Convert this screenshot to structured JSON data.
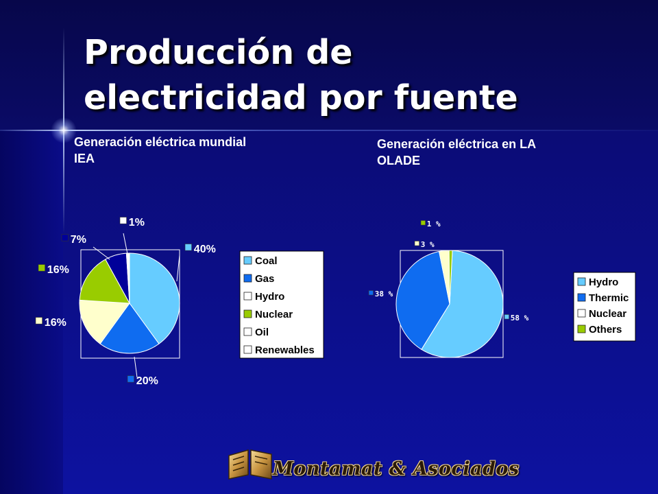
{
  "slide": {
    "title_lines": [
      "Producción de",
      "electricidad por fuente"
    ],
    "logo_text": "Montamat & Asociados"
  },
  "colors": {
    "light_blue": "#66ccff",
    "blue": "#0f6cf0",
    "cream": "#ffffcc",
    "green": "#99cc00",
    "white": "#ffffff",
    "dark_blue": "#0a0aa8",
    "gray": "#d4d4d4",
    "dark_navy": "#000099"
  },
  "chart_data": [
    {
      "type": "pie",
      "title": "Generación eléctrica mundial IEA",
      "title_lines": [
        "Generación eléctrica mundial",
        "IEA"
      ],
      "slices": [
        {
          "label": "Coal",
          "value": 40,
          "data_label": "40%",
          "color": "#66ccff"
        },
        {
          "label": "Gas",
          "value": 20,
          "data_label": "20%",
          "color": "#0f6cf0"
        },
        {
          "label": "Hydro",
          "value": 16,
          "data_label": "16%",
          "color": "#ffffcc"
        },
        {
          "label": "Nuclear",
          "value": 16,
          "data_label": "16%",
          "color": "#99cc00"
        },
        {
          "label": "Oil",
          "value": 7,
          "data_label": "7%",
          "color": "#000099"
        },
        {
          "label": "Renewables",
          "value": 1,
          "data_label": "1%",
          "color": "#ffffff"
        }
      ],
      "legend": [
        "Coal",
        "Gas",
        "Hydro",
        "Nuclear",
        "Oil",
        "Renewables"
      ],
      "legend_colors": [
        "#66ccff",
        "#0f6cf0",
        "#ffffff",
        "#99cc00",
        "#ffffff",
        "#ffffff"
      ],
      "legend_position": "right"
    },
    {
      "type": "pie",
      "title": "Generación eléctrica en LA OLADE",
      "title_lines": [
        "Generación eléctrica en LA",
        "OLADE"
      ],
      "slices": [
        {
          "label": "Hydro",
          "value": 58,
          "data_label": "58 %",
          "color": "#66ccff"
        },
        {
          "label": "Thermic",
          "value": 38,
          "data_label": "38 %",
          "color": "#0f6cf0"
        },
        {
          "label": "Nuclear",
          "value": 3,
          "data_label": "3 %",
          "color": "#ffffcc"
        },
        {
          "label": "Others",
          "value": 1,
          "data_label": "1 %",
          "color": "#99cc00"
        }
      ],
      "legend": [
        "Hydro",
        "Thermic",
        "Nuclear",
        "Others"
      ],
      "legend_colors": [
        "#66ccff",
        "#0f6cf0",
        "#ffffff",
        "#99cc00"
      ],
      "legend_position": "right"
    }
  ]
}
